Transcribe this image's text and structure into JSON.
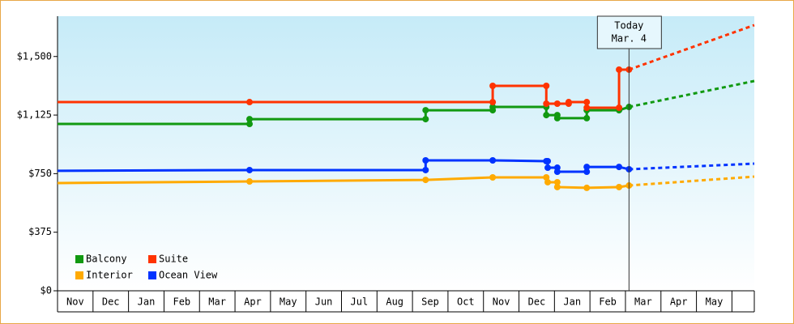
{
  "chart_data": {
    "type": "line",
    "ylim": [
      0,
      1758
    ],
    "yticks": [
      {
        "value": 0,
        "label": "$0"
      },
      {
        "value": 375,
        "label": "$375"
      },
      {
        "value": 750,
        "label": "$750"
      },
      {
        "value": 1125,
        "label": "$1,125"
      },
      {
        "value": 1500,
        "label": "$1,500"
      }
    ],
    "xlim": [
      0,
      19.63
    ],
    "xticks": [
      {
        "value": 0,
        "label": "Nov"
      },
      {
        "value": 1,
        "label": "Dec"
      },
      {
        "value": 2,
        "label": "Jan"
      },
      {
        "value": 3,
        "label": "Feb"
      },
      {
        "value": 4,
        "label": "Mar"
      },
      {
        "value": 5,
        "label": "Apr"
      },
      {
        "value": 6,
        "label": "May"
      },
      {
        "value": 7,
        "label": "Jun"
      },
      {
        "value": 8,
        "label": "Jul"
      },
      {
        "value": 9,
        "label": "Aug"
      },
      {
        "value": 10,
        "label": "Sep"
      },
      {
        "value": 11,
        "label": "Oct"
      },
      {
        "value": 12,
        "label": "Nov"
      },
      {
        "value": 13,
        "label": "Dec"
      },
      {
        "value": 14,
        "label": "Jan"
      },
      {
        "value": 15,
        "label": "Feb"
      },
      {
        "value": 16,
        "label": "Mar"
      },
      {
        "value": 17,
        "label": "Apr"
      },
      {
        "value": 18,
        "label": "May"
      }
    ],
    "annotation": {
      "lines": [
        "Today",
        "Mar. 4"
      ],
      "x": 16.1
    },
    "series": [
      {
        "name": "Balcony",
        "color": "#119911",
        "x": [
          0,
          5.41,
          5.41,
          10.37,
          10.37,
          12.26,
          12.26,
          13.77,
          13.77,
          14.08,
          14.08,
          14.91,
          14.91,
          15.82,
          16.1
        ],
        "values": [
          1068,
          1068,
          1099,
          1099,
          1156,
          1156,
          1177,
          1177,
          1125,
          1125,
          1105,
          1105,
          1156,
          1156,
          1177
        ],
        "forecast": {
          "x": [
            16.1,
            19.63
          ],
          "values": [
            1177,
            1343
          ]
        }
      },
      {
        "name": "Suite",
        "color": "#ff3300",
        "x": [
          0,
          5.41,
          12.26,
          12.26,
          13.77,
          13.77,
          14.08,
          14.4,
          14.4,
          14.91,
          14.91,
          15.82,
          15.82,
          16.1
        ],
        "values": [
          1208,
          1208,
          1208,
          1312,
          1312,
          1198,
          1198,
          1198,
          1208,
          1208,
          1172,
          1172,
          1416,
          1416
        ],
        "forecast": {
          "x": [
            16.1,
            19.63
          ],
          "values": [
            1416,
            1701
          ]
        }
      },
      {
        "name": "Interior",
        "color": "#ffaa00",
        "x": [
          0,
          5.41,
          10.37,
          12.26,
          13.77,
          13.81,
          14.08,
          14.08,
          14.91,
          15.82,
          16.1
        ],
        "values": [
          690,
          700,
          710,
          726,
          726,
          695,
          695,
          664,
          659,
          664,
          674
        ],
        "forecast": {
          "x": [
            16.1,
            19.63
          ],
          "values": [
            674,
            731
          ]
        }
      },
      {
        "name": "Ocean View",
        "color": "#0033ff",
        "x": [
          0,
          5.41,
          10.37,
          10.37,
          12.26,
          13.77,
          13.81,
          13.81,
          14.08,
          14.08,
          14.91,
          14.91,
          15.82,
          16.1
        ],
        "values": [
          768,
          773,
          773,
          835,
          835,
          830,
          830,
          788,
          788,
          762,
          762,
          793,
          793,
          778
        ],
        "forecast": {
          "x": [
            16.1,
            19.63
          ],
          "values": [
            778,
            814
          ]
        }
      }
    ]
  }
}
